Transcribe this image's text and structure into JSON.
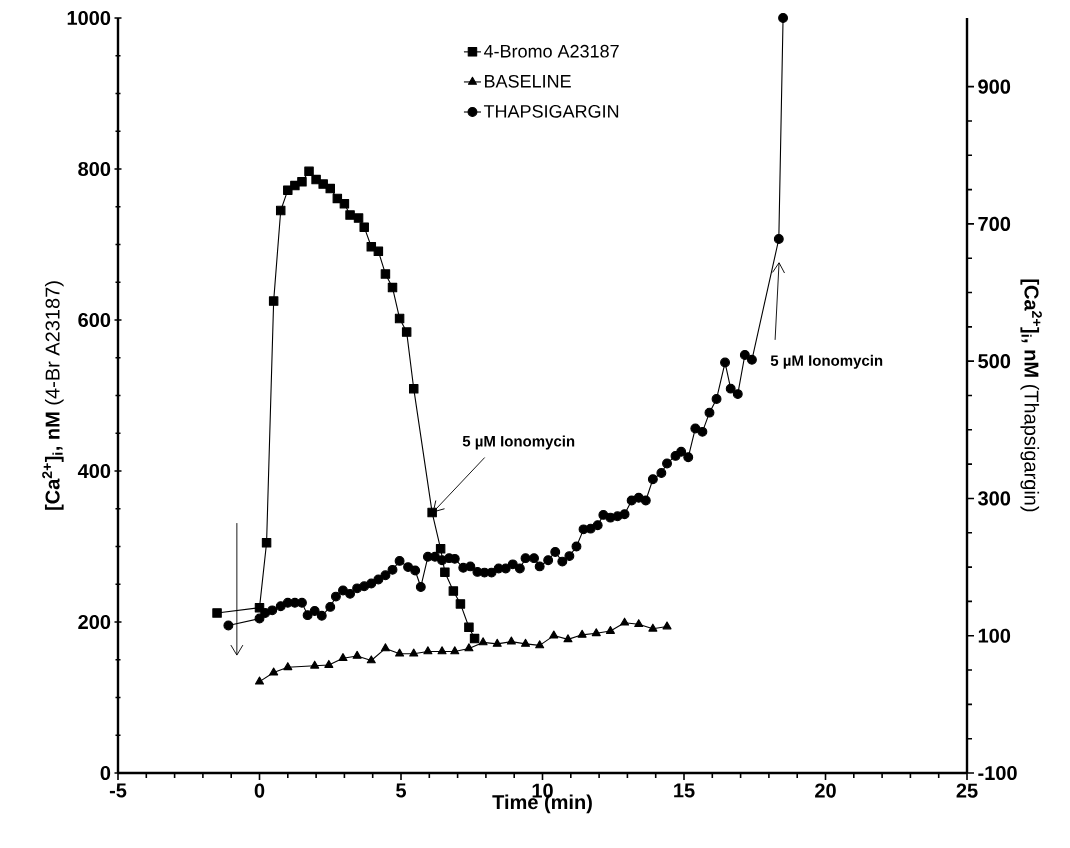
{
  "chart_data": {
    "type": "line",
    "xlabel": "Time (min)",
    "ylabel": "**[Ca$^{2+}$]$_{i}$, nM**   (4-Br A23187)",
    "y2label": "**[Ca$^{2+}$]$_{i}$, nM**   (Thapsigargin)",
    "xlim": [
      -5,
      25
    ],
    "xticks": [
      -5,
      0,
      5,
      10,
      15,
      20,
      25
    ],
    "ylim": [
      0,
      1000
    ],
    "yticks": [
      0,
      200,
      400,
      600,
      800,
      1000
    ],
    "y2lim": [
      -100,
      1000
    ],
    "y2ticks": [
      -100,
      100,
      300,
      500,
      700,
      900
    ],
    "legend": "top",
    "grid": false,
    "line_style": "solid",
    "series": [
      {
        "name": "4-Bromo A23187",
        "color": "#000000",
        "marker": "square",
        "axis": "y",
        "x": [
          -1.5,
          0,
          0.25,
          0.5,
          0.75,
          1,
          1.25,
          1.5,
          1.75,
          2,
          2.25,
          2.5,
          2.75,
          3,
          3.2,
          3.5,
          3.7,
          3.95,
          4.2,
          4.45,
          4.7,
          4.95,
          5.2,
          5.45,
          6.1,
          6.4,
          6.55,
          6.85,
          7.1,
          7.4,
          7.6
        ],
        "values": [
          212,
          219,
          305,
          625,
          745,
          772,
          778,
          783,
          797,
          786,
          780,
          774,
          761,
          754,
          739,
          735,
          723,
          697,
          691,
          661,
          643,
          602,
          584,
          509,
          345,
          297,
          266,
          241,
          224,
          193,
          178
        ]
      },
      {
        "name": "BASELINE",
        "color": "#000000",
        "marker": "triangle",
        "axis": "y",
        "x": [
          0,
          0.5,
          1,
          1.95,
          2.45,
          2.95,
          3.45,
          3.95,
          4.45,
          4.95,
          5.45,
          5.95,
          6.45,
          6.9,
          7.4,
          7.9,
          8.4,
          8.9,
          9.4,
          9.9,
          10.4,
          10.9,
          11.4,
          11.9,
          12.4,
          12.9,
          13.4,
          13.9,
          14.4
        ],
        "values": [
          121,
          133,
          140,
          142,
          143,
          152,
          155,
          149,
          165,
          158,
          158,
          161,
          161,
          161,
          165,
          173,
          171,
          174,
          171,
          169,
          182,
          177,
          183,
          185,
          188,
          199,
          197,
          191,
          194
        ]
      },
      {
        "name": "THAPSIGARGIN",
        "color": "#000000",
        "marker": "circle",
        "axis": "y2",
        "x": [
          -1.1,
          0,
          0.2,
          0.45,
          0.75,
          1,
          1.25,
          1.5,
          1.7,
          1.95,
          2.2,
          2.5,
          2.7,
          2.95,
          3.2,
          3.45,
          3.7,
          3.95,
          4.2,
          4.45,
          4.7,
          4.95,
          5.25,
          5.5,
          5.7,
          5.95,
          6.2,
          6.45,
          6.7,
          6.9,
          7.2,
          7.45,
          7.7,
          7.95,
          8.2,
          8.45,
          8.7,
          8.95,
          9.2,
          9.4,
          9.7,
          9.9,
          10.2,
          10.45,
          10.7,
          10.95,
          11.2,
          11.45,
          11.7,
          11.95,
          12.15,
          12.4,
          12.65,
          12.9,
          13.15,
          13.4,
          13.65,
          13.9,
          14.2,
          14.4,
          14.7,
          14.9,
          15.15,
          15.4,
          15.65,
          15.9,
          16.15,
          16.45,
          16.65,
          16.9,
          17.15,
          17.4,
          18.35,
          18.5
        ],
        "values": [
          115,
          125,
          133,
          137,
          143,
          148,
          148,
          148,
          130,
          136,
          129,
          142,
          157,
          166,
          161,
          169,
          172,
          176,
          182,
          188,
          196,
          209,
          200,
          195,
          171,
          215,
          215,
          210,
          213,
          212,
          199,
          201,
          193,
          192,
          192,
          198,
          198,
          204,
          198,
          213,
          213,
          201,
          210,
          222,
          208,
          216,
          230,
          255,
          256,
          261,
          276,
          272,
          274,
          277,
          297,
          301,
          297,
          328,
          337,
          351,
          362,
          368,
          360,
          402,
          397,
          425,
          445,
          498,
          460,
          452,
          509,
          502,
          678,
          1000
        ]
      }
    ],
    "annotations": [
      {
        "text": "5 µM Ionomycin",
        "x": 6.12,
        "y": 345
      },
      {
        "text": "5 µM Ionomycin",
        "x": 18.36,
        "y": 677
      }
    ]
  }
}
